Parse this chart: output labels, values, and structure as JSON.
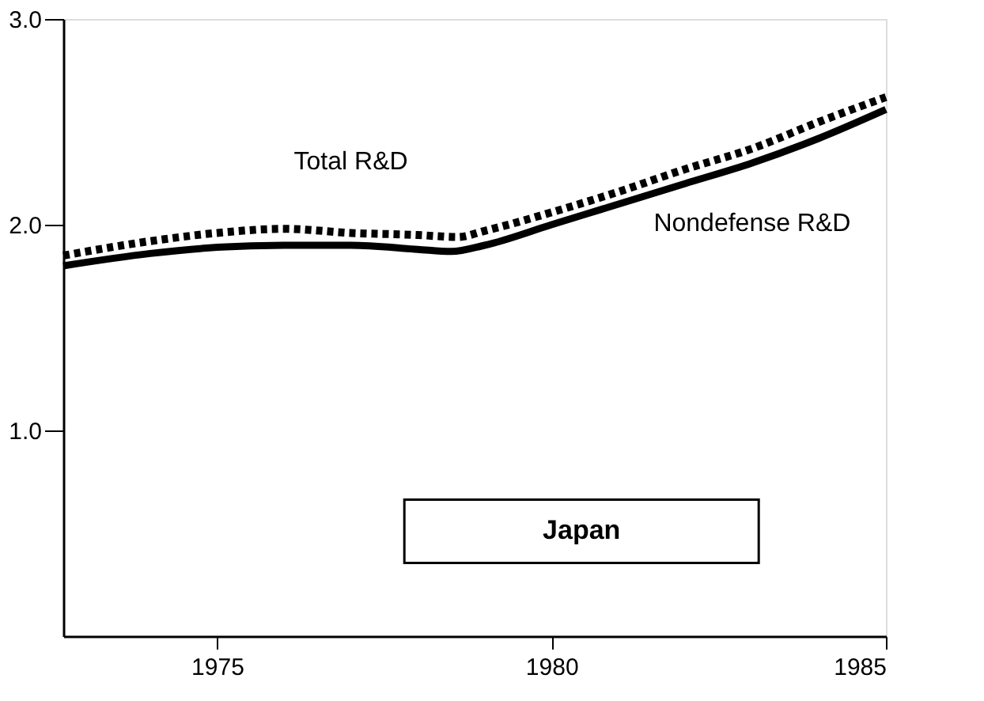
{
  "chart_data": {
    "type": "line",
    "xlim": [
      1972.7,
      1985
    ],
    "xticks": [
      1975,
      1980,
      1985
    ],
    "ylim": [
      0,
      3
    ],
    "yticks": [
      {
        "value": 1,
        "label": "1.0"
      },
      {
        "value": 2,
        "label": "2.0"
      },
      {
        "value": 3,
        "label": "3.0"
      }
    ],
    "grid": false,
    "series": [
      {
        "name": "Total R&D",
        "color": "#000000",
        "line_style": "dotted",
        "x": [
          1972.7,
          1974,
          1975,
          1976,
          1977,
          1978,
          1978.6,
          1979,
          1980,
          1981,
          1982,
          1983,
          1984,
          1985
        ],
        "values": [
          1.85,
          1.92,
          1.96,
          1.98,
          1.96,
          1.95,
          1.94,
          1.97,
          2.06,
          2.16,
          2.27,
          2.37,
          2.5,
          2.62
        ]
      },
      {
        "name": "Nondefense R&D",
        "color": "#000000",
        "line_style": "solid",
        "x": [
          1972.7,
          1974,
          1975,
          1976,
          1977,
          1978,
          1978.5,
          1979,
          1980,
          1981,
          1982,
          1983,
          1984,
          1985
        ],
        "values": [
          1.8,
          1.86,
          1.89,
          1.9,
          1.9,
          1.88,
          1.87,
          1.9,
          2.0,
          2.1,
          2.2,
          2.3,
          2.42,
          2.56
        ]
      }
    ],
    "annotations": [
      "Japan"
    ]
  }
}
